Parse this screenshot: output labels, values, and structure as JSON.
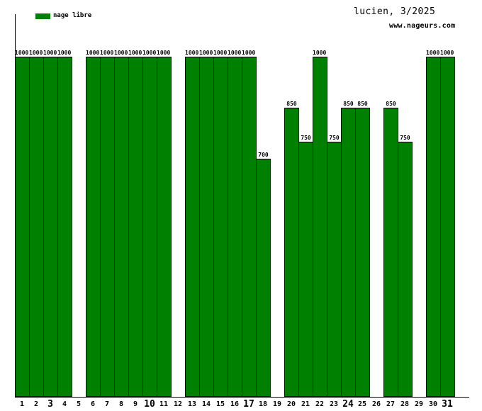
{
  "header": {
    "title": "lucien, 3/2025",
    "website": "www.nageurs.com"
  },
  "legend": {
    "label": "nage libre",
    "color": "#008000"
  },
  "chart_data": {
    "type": "bar",
    "title": "lucien, 3/2025",
    "series_name": "nage libre",
    "categories": [
      "1",
      "2",
      "3",
      "4",
      "5",
      "6",
      "7",
      "8",
      "9",
      "10",
      "11",
      "12",
      "13",
      "14",
      "15",
      "16",
      "17",
      "18",
      "19",
      "20",
      "21",
      "22",
      "23",
      "24",
      "25",
      "26",
      "27",
      "28",
      "29",
      "30",
      "31"
    ],
    "values": [
      1000,
      1000,
      1000,
      1000,
      null,
      1000,
      1000,
      1000,
      1000,
      1000,
      1000,
      null,
      1000,
      1000,
      1000,
      1000,
      1000,
      700,
      null,
      850,
      750,
      1000,
      750,
      850,
      850,
      null,
      850,
      750,
      null,
      1000,
      1000
    ],
    "bold_categories": [
      "3",
      "10",
      "17",
      "24",
      "31"
    ],
    "bar_color": "#008000",
    "bar_border_color": "#000000",
    "axis_color": "#000000",
    "ylim": [
      0,
      1125
    ],
    "grid": false,
    "legend_position": "top-left",
    "value_labels_shown": true
  }
}
